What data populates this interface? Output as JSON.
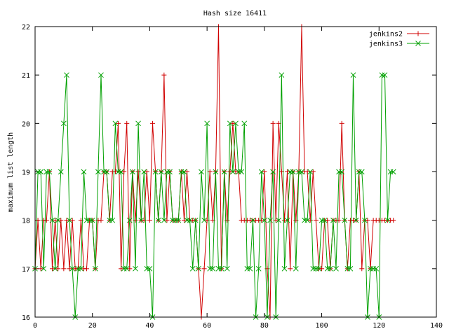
{
  "chart_data": {
    "type": "line",
    "title": "Hash size 16411",
    "xlabel": "",
    "ylabel": "maximum list length",
    "xlim": [
      0,
      140
    ],
    "ylim": [
      16,
      22
    ],
    "xticks": [
      0,
      20,
      40,
      60,
      80,
      100,
      120,
      140
    ],
    "yticks": [
      16,
      17,
      18,
      19,
      20,
      21,
      22
    ],
    "grid": false,
    "legend": "top-right",
    "series": [
      {
        "name": "jenkins2",
        "color": "#d00000",
        "marker": "plus",
        "x": [
          0,
          1,
          2,
          3,
          4,
          5,
          6,
          7,
          8,
          9,
          10,
          11,
          12,
          13,
          14,
          15,
          16,
          17,
          18,
          19,
          20,
          21,
          22,
          23,
          24,
          25,
          26,
          27,
          28,
          29,
          30,
          31,
          32,
          33,
          34,
          35,
          36,
          37,
          38,
          39,
          40,
          41,
          42,
          43,
          44,
          45,
          46,
          47,
          48,
          49,
          50,
          51,
          52,
          53,
          54,
          55,
          56,
          57,
          58,
          59,
          60,
          61,
          62,
          63,
          64,
          65,
          66,
          67,
          68,
          69,
          70,
          71,
          72,
          73,
          74,
          75,
          76,
          77,
          78,
          79,
          80,
          81,
          82,
          83,
          84,
          85,
          86,
          87,
          88,
          89,
          90,
          91,
          92,
          93,
          94,
          95,
          96,
          97,
          98,
          99,
          100,
          101,
          102,
          103,
          104,
          105,
          106,
          107,
          108,
          109,
          110,
          111,
          112,
          113,
          114,
          115,
          116,
          117,
          118,
          119,
          120,
          121,
          122,
          123,
          124,
          125
        ],
        "values": [
          17,
          18,
          17,
          18,
          18,
          19,
          17,
          18,
          17,
          18,
          17,
          18,
          17,
          18,
          17,
          17,
          18,
          17,
          17,
          18,
          18,
          17,
          18,
          18,
          19,
          19,
          18,
          19,
          19,
          20,
          17,
          19,
          20,
          17,
          19,
          18,
          19,
          18,
          18,
          19,
          18,
          20,
          19,
          18,
          19,
          21,
          18,
          19,
          18,
          18,
          18,
          19,
          18,
          19,
          18,
          18,
          18,
          17,
          16,
          17,
          18,
          19,
          18,
          19,
          22,
          17,
          19,
          18,
          19,
          20,
          19,
          19,
          18,
          18,
          18,
          18,
          18,
          18,
          18,
          18,
          19,
          17,
          16,
          20,
          18,
          20,
          19,
          18,
          19,
          17,
          19,
          18,
          19,
          22,
          19,
          19,
          18,
          19,
          18,
          17,
          17,
          18,
          18,
          17,
          18,
          18,
          18,
          20,
          18,
          17,
          18,
          18,
          18,
          19,
          17,
          18,
          18,
          17,
          18,
          18,
          18,
          18,
          18,
          18,
          18,
          18
        ]
      },
      {
        "name": "jenkins3",
        "color": "#00a000",
        "marker": "x",
        "x": [
          0,
          1,
          2,
          3,
          4,
          5,
          6,
          7,
          8,
          9,
          10,
          11,
          12,
          13,
          14,
          15,
          16,
          17,
          18,
          19,
          20,
          21,
          22,
          23,
          24,
          25,
          26,
          27,
          28,
          29,
          30,
          31,
          32,
          33,
          34,
          35,
          36,
          37,
          38,
          39,
          40,
          41,
          42,
          43,
          44,
          45,
          46,
          47,
          48,
          49,
          50,
          51,
          52,
          53,
          54,
          55,
          56,
          57,
          58,
          59,
          60,
          61,
          62,
          63,
          64,
          65,
          66,
          67,
          68,
          69,
          70,
          71,
          72,
          73,
          74,
          75,
          76,
          77,
          78,
          79,
          80,
          81,
          82,
          83,
          84,
          85,
          86,
          87,
          88,
          89,
          90,
          91,
          92,
          93,
          94,
          95,
          96,
          97,
          98,
          99,
          100,
          101,
          102,
          103,
          104,
          105,
          106,
          107,
          108,
          109,
          110,
          111,
          112,
          113,
          114,
          115,
          116,
          117,
          118,
          119,
          120,
          121,
          122,
          123,
          124,
          125
        ],
        "values": [
          17,
          19,
          19,
          17,
          19,
          19,
          18,
          17,
          18,
          19,
          20,
          21,
          18,
          17,
          16,
          17,
          17,
          19,
          18,
          18,
          18,
          17,
          19,
          21,
          19,
          19,
          18,
          18,
          20,
          19,
          19,
          17,
          17,
          18,
          19,
          17,
          20,
          18,
          19,
          17,
          17,
          16,
          19,
          18,
          19,
          18,
          19,
          19,
          18,
          18,
          18,
          19,
          19,
          18,
          18,
          17,
          18,
          17,
          19,
          18,
          20,
          17,
          17,
          19,
          17,
          17,
          19,
          17,
          20,
          19,
          20,
          19,
          19,
          20,
          17,
          17,
          18,
          16,
          17,
          19,
          18,
          16,
          18,
          19,
          16,
          18,
          21,
          17,
          18,
          19,
          19,
          17,
          19,
          19,
          18,
          18,
          19,
          17,
          17,
          17,
          18,
          18,
          17,
          17,
          18,
          17,
          19,
          19,
          18,
          17,
          17,
          21,
          18,
          19,
          19,
          18,
          16,
          17,
          17,
          17,
          16,
          21,
          21,
          18,
          19,
          19
        ]
      }
    ]
  }
}
